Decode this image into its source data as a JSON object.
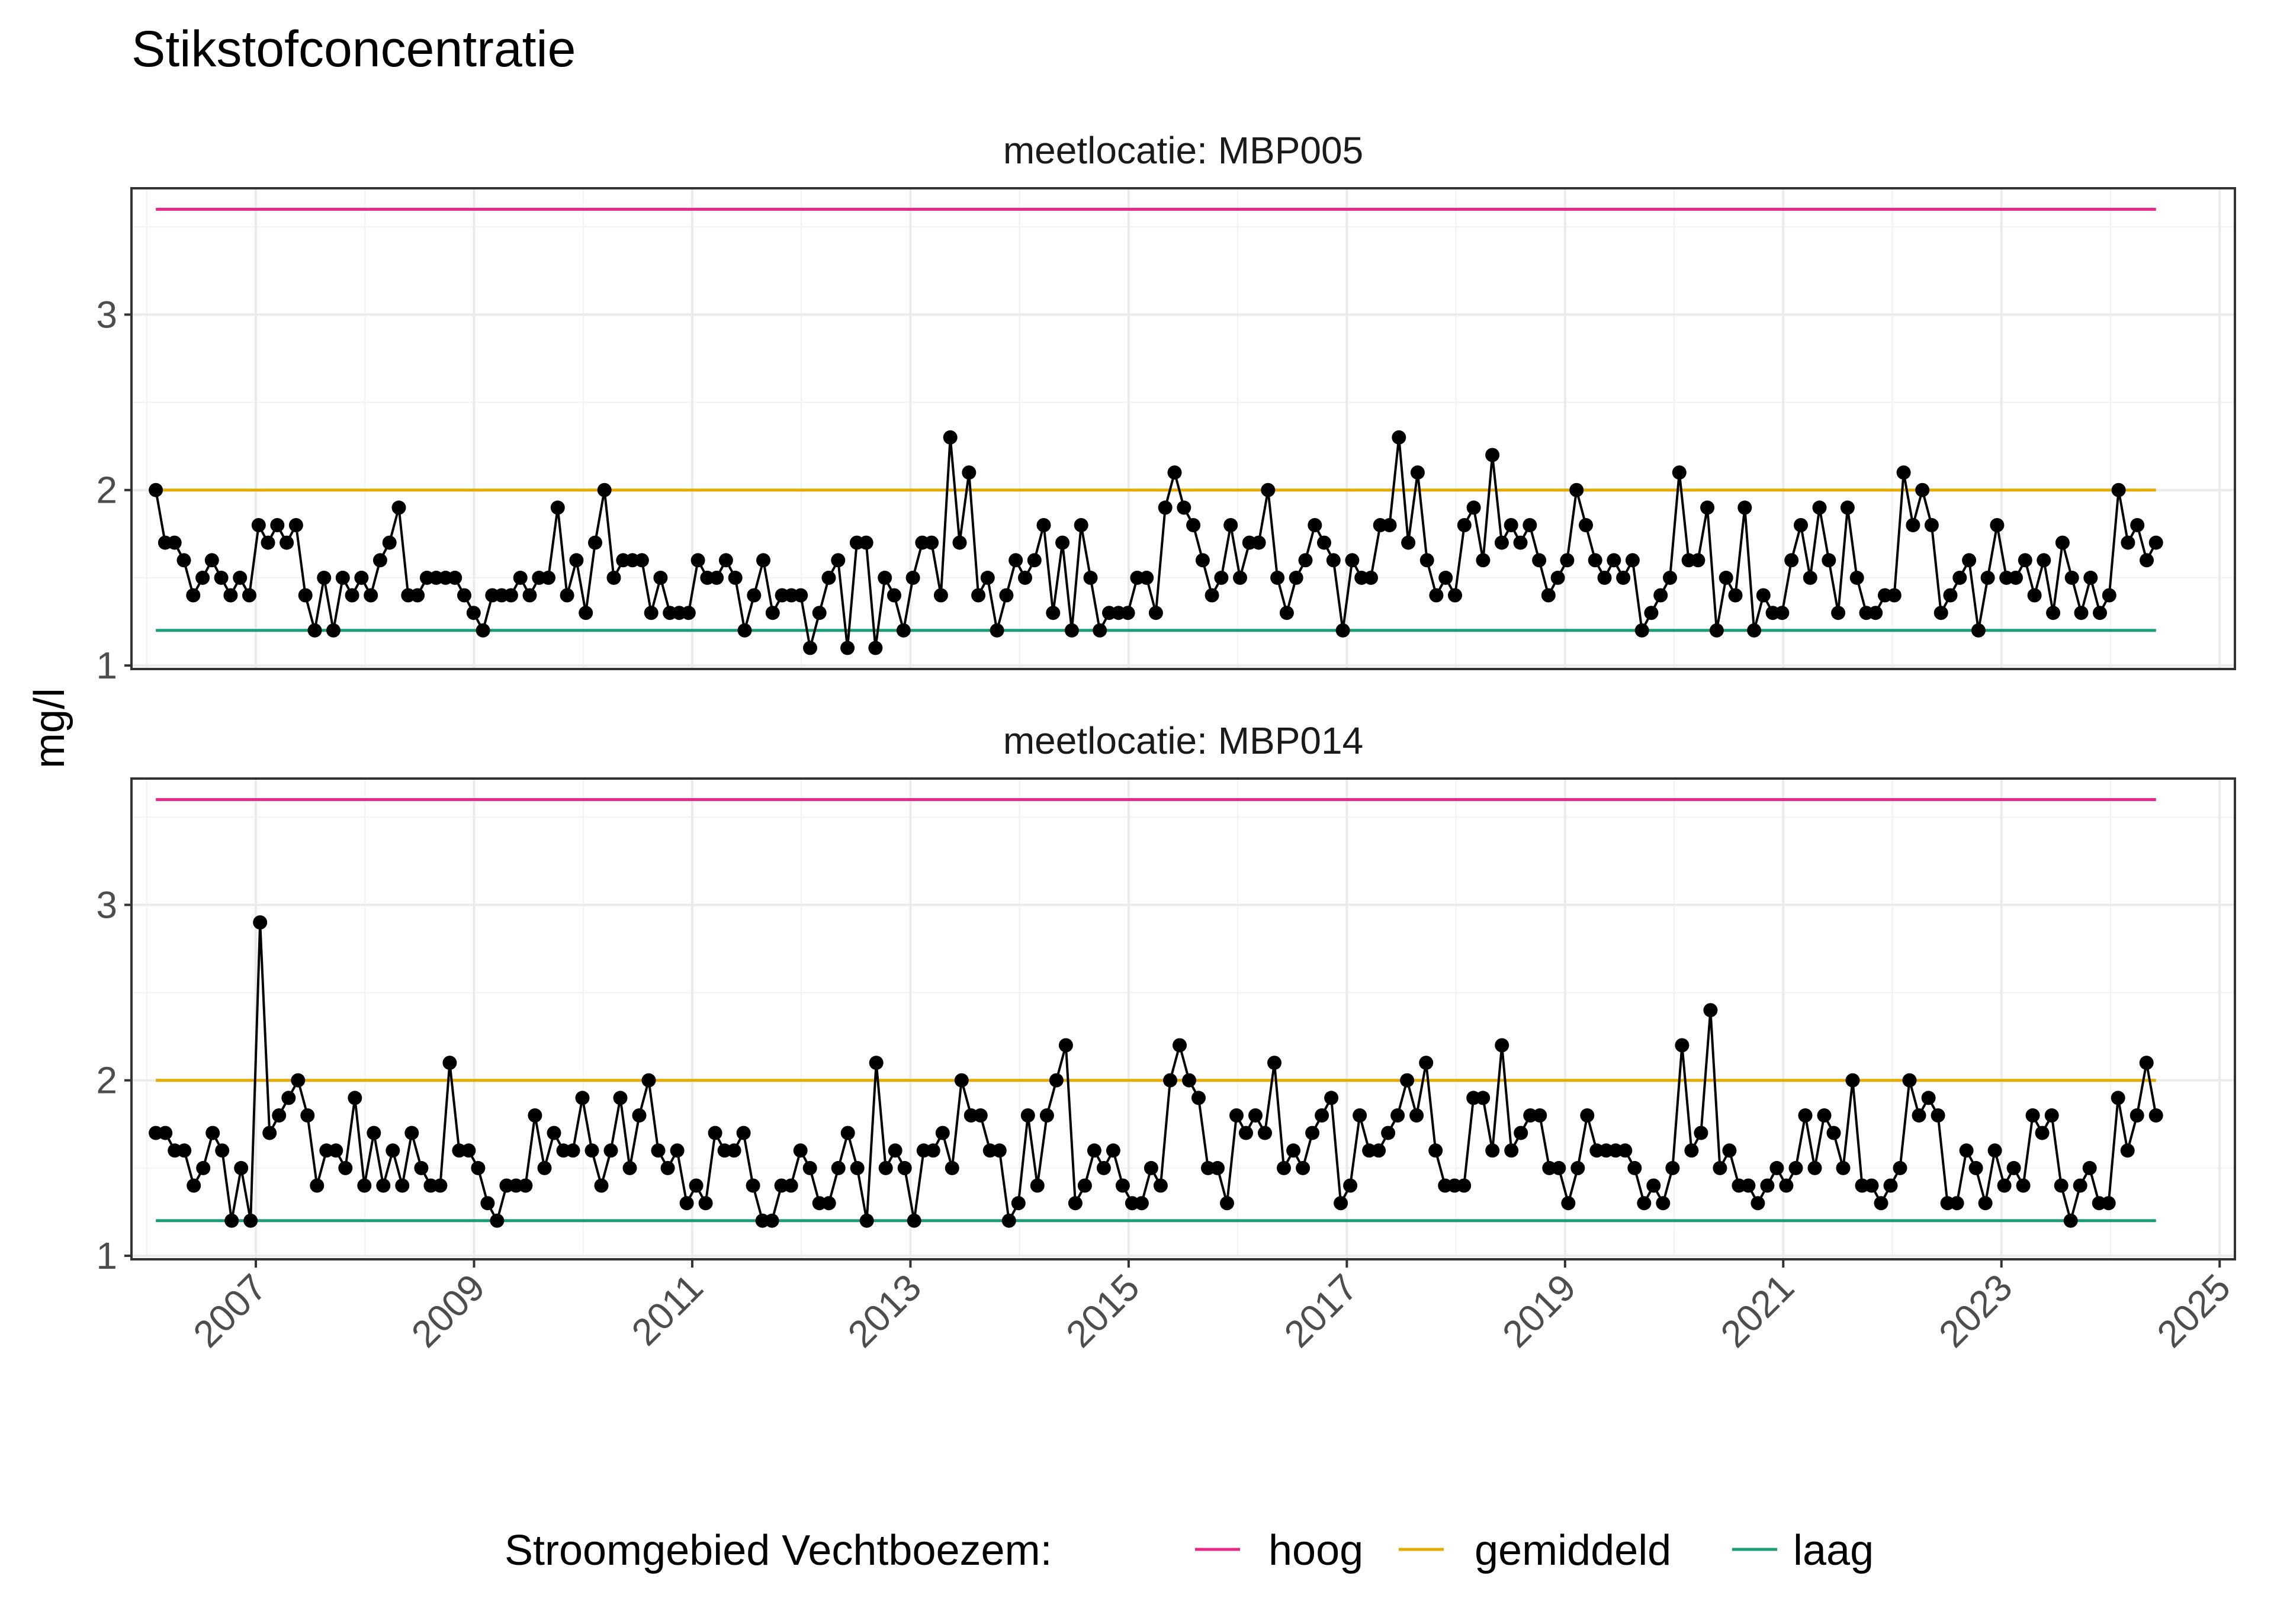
{
  "chart_data": {
    "type": "line",
    "title": "Stikstofconcentratie",
    "ylabel": "mg/l",
    "xlabel": "",
    "ylim": [
      0.98,
      3.72
    ],
    "y_ticks": [
      1,
      2,
      3
    ],
    "x_ticks": [
      "2007",
      "2009",
      "2011",
      "2013",
      "2015",
      "2017",
      "2019",
      "2021",
      "2023",
      "2025"
    ],
    "grid": true,
    "legend": {
      "title": "Stroomgebied Vechtboezem:",
      "placement": "bottom",
      "entries": [
        {
          "label": "hoog",
          "color": "#e7298a"
        },
        {
          "label": "gemiddeld",
          "color": "#e6ab02"
        },
        {
          "label": "laag",
          "color": "#1b9e77"
        }
      ]
    },
    "reference_lines": [
      {
        "name": "hoog",
        "value": 3.6,
        "color": "#e7298a"
      },
      {
        "name": "gemiddeld",
        "value": 2.0,
        "color": "#e6ab02"
      },
      {
        "name": "laag",
        "value": 1.2,
        "color": "#1b9e77"
      }
    ],
    "date_range": [
      "2006-02",
      "2024-06"
    ],
    "panels": [
      {
        "strip": "meetlocatie: MBP005",
        "values": [
          2.0,
          1.7,
          1.7,
          1.6,
          1.4,
          1.5,
          1.6,
          1.5,
          1.4,
          1.5,
          1.4,
          1.8,
          1.7,
          1.8,
          1.7,
          1.8,
          1.4,
          1.2,
          1.5,
          1.2,
          1.5,
          1.4,
          1.5,
          1.4,
          1.6,
          1.7,
          1.9,
          1.4,
          1.4,
          1.5,
          1.5,
          1.5,
          1.5,
          1.4,
          1.3,
          1.2,
          1.4,
          1.4,
          1.4,
          1.5,
          1.4,
          1.5,
          1.5,
          1.9,
          1.4,
          1.6,
          1.3,
          1.7,
          2.0,
          1.5,
          1.6,
          1.6,
          1.6,
          1.3,
          1.5,
          1.3,
          1.3,
          1.3,
          1.6,
          1.5,
          1.5,
          1.6,
          1.5,
          1.2,
          1.4,
          1.6,
          1.3,
          1.4,
          1.4,
          1.4,
          1.1,
          1.3,
          1.5,
          1.6,
          1.1,
          1.7,
          1.7,
          1.1,
          1.5,
          1.4,
          1.2,
          1.5,
          1.7,
          1.7,
          1.4,
          2.3,
          1.7,
          2.1,
          1.4,
          1.5,
          1.2,
          1.4,
          1.6,
          1.5,
          1.6,
          1.8,
          1.3,
          1.7,
          1.2,
          1.8,
          1.5,
          1.2,
          1.3,
          1.3,
          1.3,
          1.5,
          1.5,
          1.3,
          1.9,
          2.1,
          1.9,
          1.8,
          1.6,
          1.4,
          1.5,
          1.8,
          1.5,
          1.7,
          1.7,
          2.0,
          1.5,
          1.3,
          1.5,
          1.6,
          1.8,
          1.7,
          1.6,
          1.2,
          1.6,
          1.5,
          1.5,
          1.8,
          1.8,
          2.3,
          1.7,
          2.1,
          1.6,
          1.4,
          1.5,
          1.4,
          1.8,
          1.9,
          1.6,
          2.2,
          1.7,
          1.8,
          1.7,
          1.8,
          1.6,
          1.4,
          1.5,
          1.6,
          2.0,
          1.8,
          1.6,
          1.5,
          1.6,
          1.5,
          1.6,
          1.2,
          1.3,
          1.4,
          1.5,
          2.1,
          1.6,
          1.6,
          1.9,
          1.2,
          1.5,
          1.4,
          1.9,
          1.2,
          1.4,
          1.3,
          1.3,
          1.6,
          1.8,
          1.5,
          1.9,
          1.6,
          1.3,
          1.9,
          1.5,
          1.3,
          1.3,
          1.4,
          1.4,
          2.1,
          1.8,
          2.0,
          1.8,
          1.3,
          1.4,
          1.5,
          1.6,
          1.2,
          1.5,
          1.8,
          1.5,
          1.5,
          1.6,
          1.4,
          1.6,
          1.3,
          1.7,
          1.5,
          1.3,
          1.5,
          1.3,
          1.4,
          2.0,
          1.7,
          1.8,
          1.6,
          1.7
        ]
      },
      {
        "strip": "meetlocatie: MBP014",
        "values": [
          1.7,
          1.7,
          1.6,
          1.6,
          1.4,
          1.5,
          1.7,
          1.6,
          1.2,
          1.5,
          1.2,
          2.9,
          1.7,
          1.8,
          1.9,
          2.0,
          1.8,
          1.4,
          1.6,
          1.6,
          1.5,
          1.9,
          1.4,
          1.7,
          1.4,
          1.6,
          1.4,
          1.7,
          1.5,
          1.4,
          1.4,
          2.1,
          1.6,
          1.6,
          1.5,
          1.3,
          1.2,
          1.4,
          1.4,
          1.4,
          1.8,
          1.5,
          1.7,
          1.6,
          1.6,
          1.9,
          1.6,
          1.4,
          1.6,
          1.9,
          1.5,
          1.8,
          2.0,
          1.6,
          1.5,
          1.6,
          1.3,
          1.4,
          1.3,
          1.7,
          1.6,
          1.6,
          1.7,
          1.4,
          1.2,
          1.2,
          1.4,
          1.4,
          1.6,
          1.5,
          1.3,
          1.3,
          1.5,
          1.7,
          1.5,
          1.2,
          2.1,
          1.5,
          1.6,
          1.5,
          1.2,
          1.6,
          1.6,
          1.7,
          1.5,
          2.0,
          1.8,
          1.8,
          1.6,
          1.6,
          1.2,
          1.3,
          1.8,
          1.4,
          1.8,
          2.0,
          2.2,
          1.3,
          1.4,
          1.6,
          1.5,
          1.6,
          1.4,
          1.3,
          1.3,
          1.5,
          1.4,
          2.0,
          2.2,
          2.0,
          1.9,
          1.5,
          1.5,
          1.3,
          1.8,
          1.7,
          1.8,
          1.7,
          2.1,
          1.5,
          1.6,
          1.5,
          1.7,
          1.8,
          1.9,
          1.3,
          1.4,
          1.8,
          1.6,
          1.6,
          1.7,
          1.8,
          2.0,
          1.8,
          2.1,
          1.6,
          1.4,
          1.4,
          1.4,
          1.9,
          1.9,
          1.6,
          2.2,
          1.6,
          1.7,
          1.8,
          1.8,
          1.5,
          1.5,
          1.3,
          1.5,
          1.8,
          1.6,
          1.6,
          1.6,
          1.6,
          1.5,
          1.3,
          1.4,
          1.3,
          1.5,
          2.2,
          1.6,
          1.7,
          2.4,
          1.5,
          1.6,
          1.4,
          1.4,
          1.3,
          1.4,
          1.5,
          1.4,
          1.5,
          1.8,
          1.5,
          1.8,
          1.7,
          1.5,
          2.0,
          1.4,
          1.4,
          1.3,
          1.4,
          1.5,
          2.0,
          1.8,
          1.9,
          1.8,
          1.3,
          1.3,
          1.6,
          1.5,
          1.3,
          1.6,
          1.4,
          1.5,
          1.4,
          1.8,
          1.7,
          1.8,
          1.4,
          1.2,
          1.4,
          1.5,
          1.3,
          1.3,
          1.9,
          1.6,
          1.8,
          2.1,
          1.8
        ]
      }
    ]
  }
}
